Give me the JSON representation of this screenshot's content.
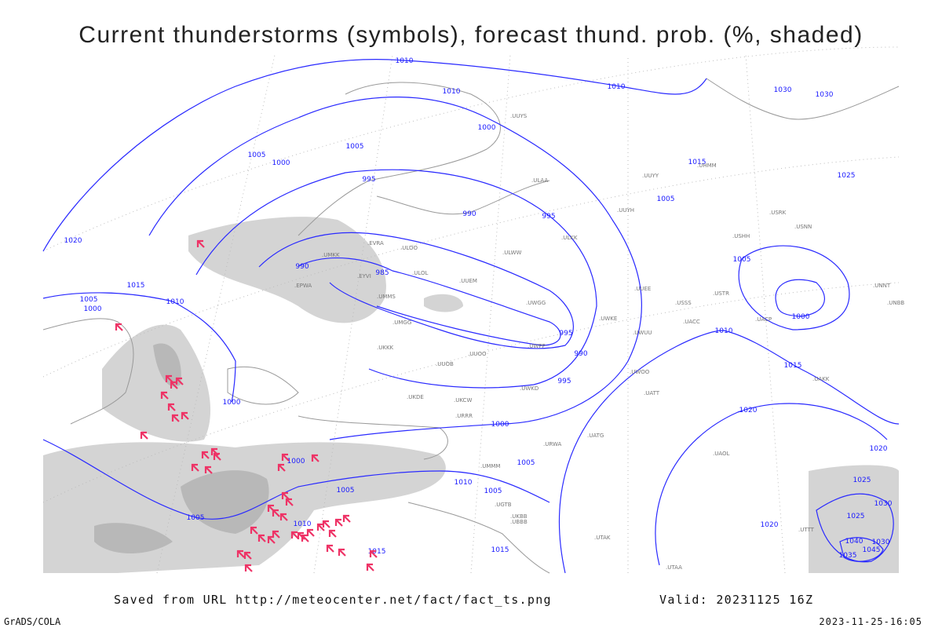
{
  "header": {
    "title": "Current thunderstorms (symbols), forecast thund. prob. (%, shaded)"
  },
  "map": {
    "isobar_labels": [
      "1010",
      "1010",
      "1010",
      "1030",
      "1030",
      "1000",
      "1005",
      "1005",
      "1000",
      "1015",
      "1025",
      "995",
      "990",
      "995",
      "1005",
      "1020",
      "1005",
      "990",
      "985",
      "1015",
      "1005",
      "1010",
      "1000",
      "1000",
      "995",
      "990",
      "1010",
      "1015",
      "995",
      "1000",
      "1000",
      "1020",
      "1020",
      "1000",
      "1005",
      "1025",
      "1010",
      "1005",
      "1005",
      "1030",
      "1005",
      "1010",
      "1025",
      "1020",
      "1015",
      "1015",
      "1040",
      "1030",
      "1045",
      "1035"
    ],
    "station_labels": [
      ".ULOO",
      ".ULOL",
      ".UMMS",
      ".UMGG",
      ".UKKK",
      ".UUOB",
      ".UUOO",
      ".UWPP",
      ".UWGG",
      ".UUEM",
      ".ULAA",
      ".ULWW",
      ".UUYY",
      ".ULKK",
      ".UUYH",
      ".USSS",
      ".UUEE",
      ".UWKD",
      ".UWKE",
      ".UWUU",
      ".URRR",
      ".UKCW",
      ".UKDE",
      ".URWA",
      ".UATG",
      ".UAOL",
      ".UACC",
      ".UAKK",
      ".UACP",
      ".UUYS",
      ".UHMM",
      ".USRK",
      ".USNN",
      ".USHH",
      ".UNNT",
      ".UNBB",
      ".USTR",
      ".UWOO",
      ".UATT",
      ".UGTB",
      ".UBBB",
      ".UTAK",
      ".UTTT",
      ".UTAA",
      ".UKBB",
      ".UMMM",
      ".UMKK",
      ".EVRA",
      ".EYVI",
      ".EPWA"
    ]
  },
  "footer": {
    "source": "Saved from URL http://meteocenter.net/fact/fact_ts.png",
    "valid": "Valid: 20231125 16Z",
    "software": "GrADS/COLA",
    "timestamp": "2023-11-25-16:05"
  }
}
